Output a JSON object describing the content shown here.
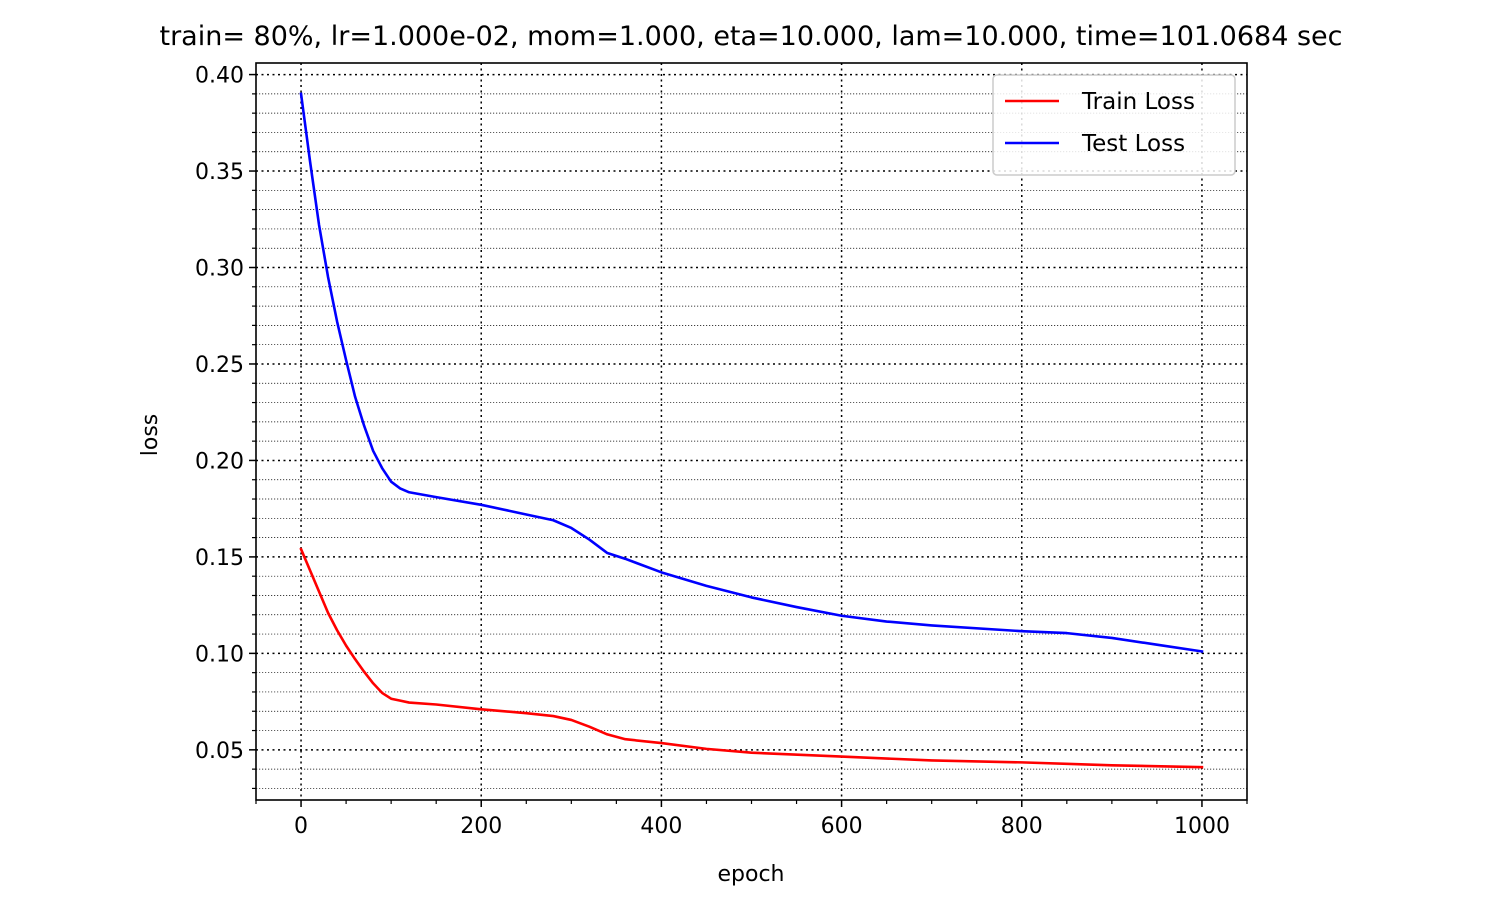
{
  "chart_data": {
    "type": "line",
    "title": "train= 80%, lr=1.000e-02, mom=1.000, eta=10.000, lam=10.000, time=101.0684 sec",
    "xlabel": "epoch",
    "ylabel": "loss",
    "xlim": [
      -50,
      1050
    ],
    "ylim": [
      0.024,
      0.406
    ],
    "xticks": [
      0,
      200,
      400,
      600,
      800,
      1000
    ],
    "xtick_labels": [
      "0",
      "200",
      "400",
      "600",
      "800",
      "1000"
    ],
    "yticks": [
      0.05,
      0.1,
      0.15,
      0.2,
      0.25,
      0.3,
      0.35,
      0.4
    ],
    "ytick_labels": [
      "0.05",
      "0.10",
      "0.15",
      "0.20",
      "0.25",
      "0.30",
      "0.35",
      "0.40"
    ],
    "x_minor_step": 50,
    "y_minor_step": 0.01,
    "grid": true,
    "legend": "top-right",
    "series": [
      {
        "name": "Train Loss",
        "color": "#ff0000",
        "x": [
          0,
          10,
          20,
          30,
          40,
          50,
          60,
          70,
          80,
          90,
          100,
          110,
          120,
          150,
          200,
          250,
          280,
          300,
          320,
          340,
          360,
          400,
          450,
          500,
          600,
          700,
          800,
          900,
          1000
        ],
        "y": [
          0.154,
          0.143,
          0.132,
          0.121,
          0.112,
          0.104,
          0.097,
          0.0905,
          0.0845,
          0.0795,
          0.0765,
          0.0755,
          0.0745,
          0.0735,
          0.071,
          0.069,
          0.0675,
          0.0655,
          0.062,
          0.058,
          0.0555,
          0.0535,
          0.0505,
          0.0485,
          0.0465,
          0.0445,
          0.0435,
          0.042,
          0.041
        ]
      },
      {
        "name": "Test Loss",
        "color": "#0000ff",
        "x": [
          0,
          10,
          20,
          30,
          40,
          50,
          60,
          70,
          80,
          90,
          100,
          110,
          120,
          150,
          200,
          250,
          280,
          300,
          320,
          340,
          360,
          400,
          450,
          500,
          550,
          600,
          650,
          700,
          800,
          850,
          900,
          950,
          1000
        ],
        "y": [
          0.39,
          0.355,
          0.322,
          0.295,
          0.272,
          0.252,
          0.233,
          0.218,
          0.205,
          0.196,
          0.189,
          0.1855,
          0.1835,
          0.181,
          0.177,
          0.172,
          0.169,
          0.165,
          0.159,
          0.152,
          0.149,
          0.142,
          0.135,
          0.129,
          0.124,
          0.1195,
          0.1165,
          0.1145,
          0.1115,
          0.1105,
          0.108,
          0.1045,
          0.101
        ]
      }
    ]
  }
}
